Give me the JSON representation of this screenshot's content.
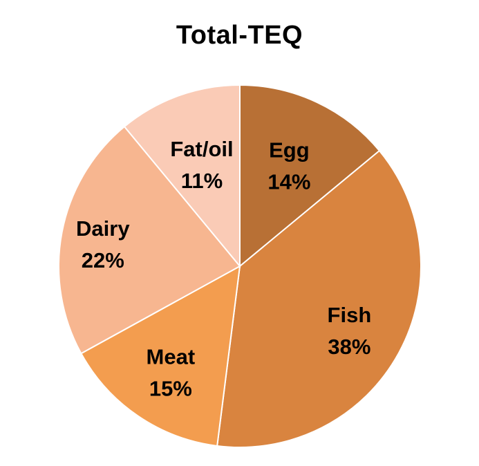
{
  "chart_data": {
    "type": "pie",
    "title": "Total-TEQ",
    "slices": [
      {
        "label": "Egg",
        "pct_label": "14%",
        "value": 14,
        "color": "#b87035"
      },
      {
        "label": "Fish",
        "pct_label": "38%",
        "value": 38,
        "color": "#d9843f"
      },
      {
        "label": "Meat",
        "pct_label": "15%",
        "value": 15,
        "color": "#f39d4f"
      },
      {
        "label": "Dairy",
        "pct_label": "22%",
        "value": 22,
        "color": "#f7b690"
      },
      {
        "label": "Fat/oil",
        "pct_label": "11%",
        "value": 11,
        "color": "#facbb6"
      }
    ],
    "legend": "none",
    "start_angle": "12 o'clock",
    "direction": "clockwise"
  }
}
